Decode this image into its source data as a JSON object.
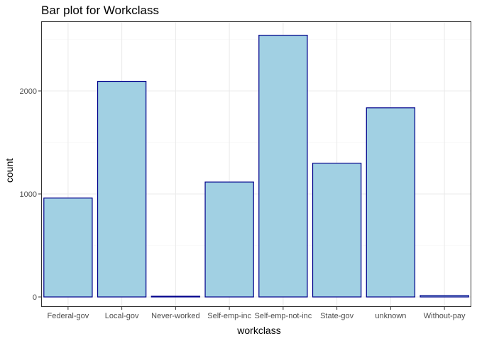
{
  "chart_data": {
    "type": "bar",
    "title": "Bar plot for Workclass",
    "xlabel": "workclass",
    "ylabel": "count",
    "categories": [
      "Federal-gov",
      "Local-gov",
      "Never-worked",
      "Self-emp-inc",
      "Self-emp-not-inc",
      "State-gov",
      "unknown",
      "Without-pay"
    ],
    "values": [
      960,
      2093,
      7,
      1116,
      2541,
      1298,
      1836,
      14
    ],
    "ylim": [
      0,
      2680
    ],
    "yticks": [
      0,
      1000,
      2000
    ],
    "ytick_labels": [
      "0",
      "1000",
      "2000"
    ],
    "grid": true,
    "legend": "none",
    "colors": {
      "bar_fill": "#a1d0e3",
      "bar_stroke": "#00008b",
      "grid_major": "#ebebeb",
      "grid_minor": "#f5f5f5",
      "panel_border": "#333333"
    }
  }
}
